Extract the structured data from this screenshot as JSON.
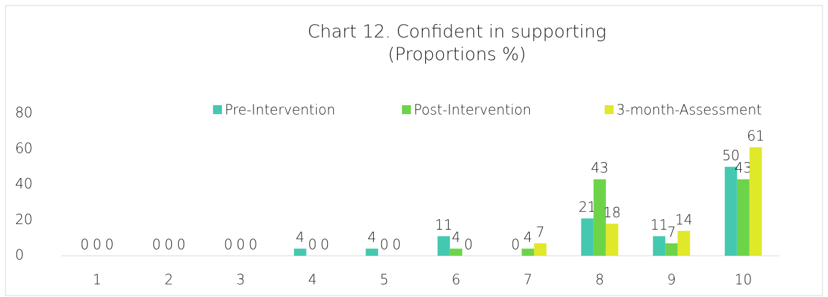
{
  "chart_data": {
    "type": "bar",
    "title": "Chart 12. Confident in supporting",
    "subtitle": "(Proportions %)",
    "categories": [
      "1",
      "2",
      "3",
      "4",
      "5",
      "6",
      "7",
      "8",
      "9",
      "10"
    ],
    "series": [
      {
        "name": "Pre-Intervention",
        "color": "#45c8b0",
        "values": [
          0,
          0,
          0,
          4,
          4,
          11,
          0,
          21,
          11,
          50
        ]
      },
      {
        "name": "Post-Intervention",
        "color": "#6dd44a",
        "values": [
          0,
          0,
          0,
          0,
          0,
          4,
          4,
          43,
          7,
          43
        ]
      },
      {
        "name": "3-month-Assessment",
        "color": "#e0e82a",
        "values": [
          0,
          0,
          0,
          0,
          0,
          0,
          7,
          18,
          14,
          61
        ]
      }
    ],
    "ylim": [
      0,
      80
    ],
    "yticks": [
      0,
      20,
      40,
      60,
      80
    ],
    "grid": false,
    "legend": "top"
  }
}
